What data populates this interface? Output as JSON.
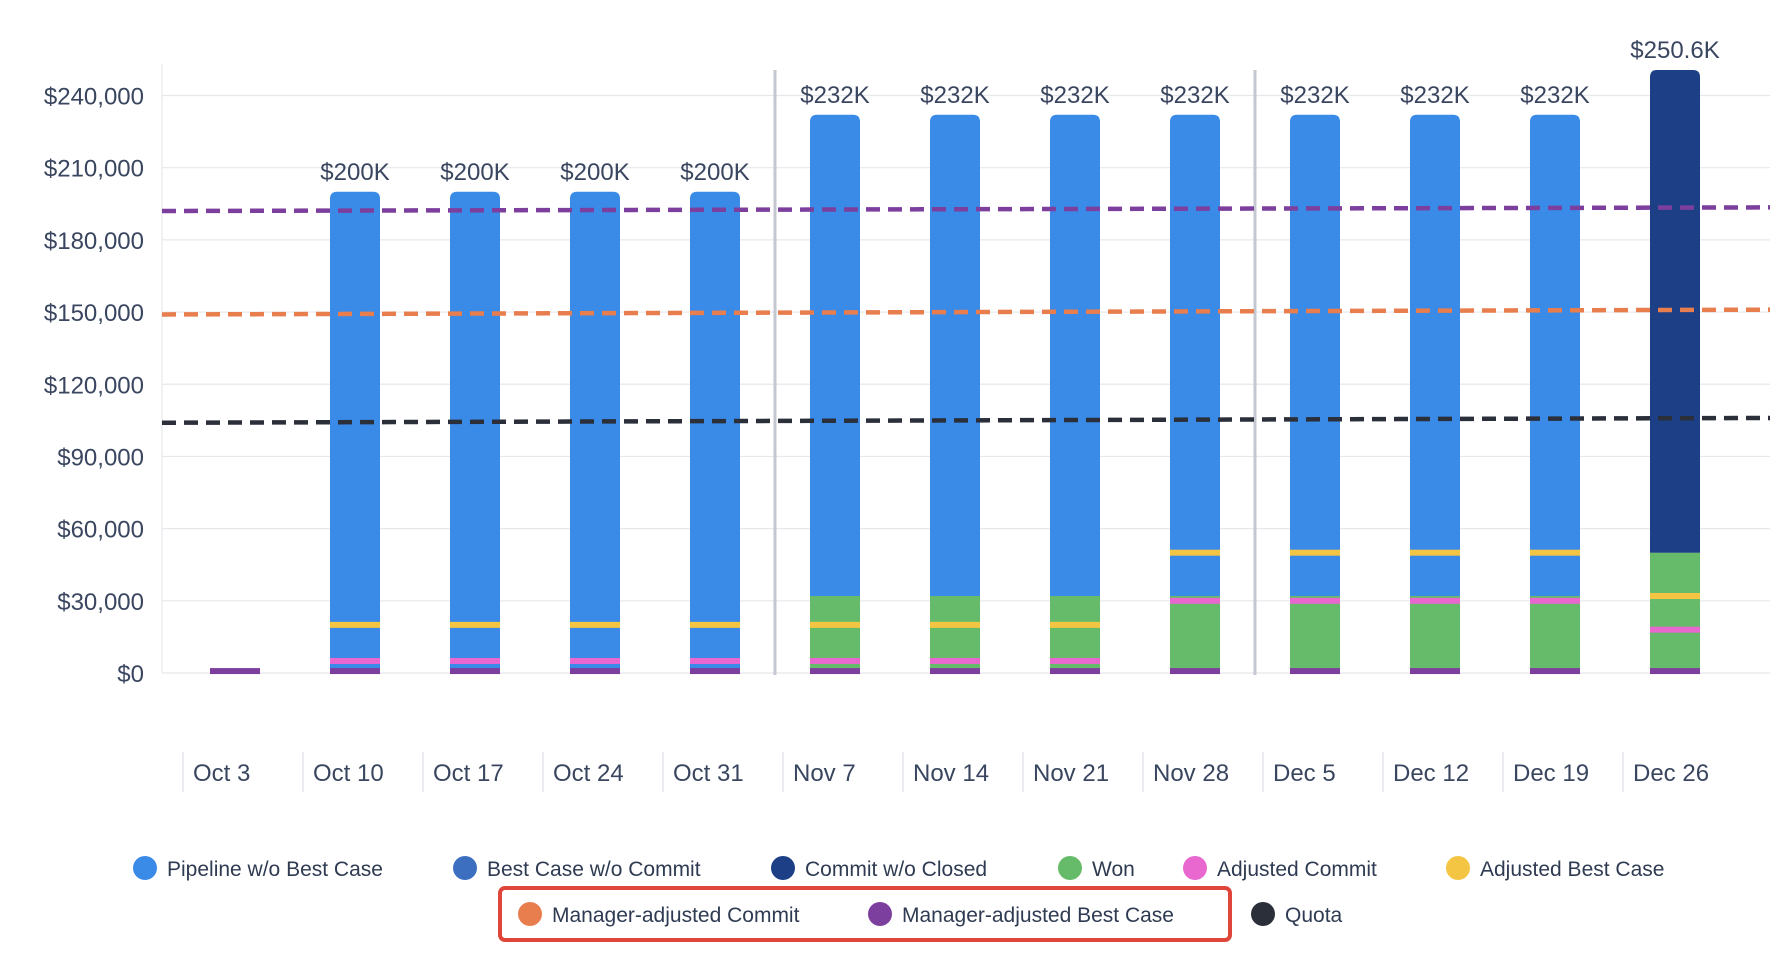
{
  "chart_data": {
    "type": "bar",
    "stacked": true,
    "title": "",
    "xlabel": "",
    "ylabel": "",
    "ylim": [
      0,
      250600
    ],
    "yticks": [
      0,
      30000,
      60000,
      90000,
      120000,
      150000,
      180000,
      210000,
      240000
    ],
    "ytick_labels": [
      "$0",
      "$30,000",
      "$60,000",
      "$90,000",
      "$120,000",
      "$150,000",
      "$180,000",
      "$210,000",
      "$240,000"
    ],
    "grid": true,
    "legend_position": "bottom",
    "categories": [
      "Oct 3",
      "Oct 10",
      "Oct 17",
      "Oct 24",
      "Oct 31",
      "Nov 7",
      "Nov 14",
      "Nov 21",
      "Nov 28",
      "Dec 5",
      "Dec 12",
      "Dec 19",
      "Dec 26"
    ],
    "totals_labels": [
      "",
      "$200K",
      "$200K",
      "$200K",
      "$200K",
      "$232K",
      "$232K",
      "$232K",
      "$232K",
      "$232K",
      "$232K",
      "$232K",
      "$250.6K"
    ],
    "period_dividers_after": [
      "Oct 31",
      "Nov 28"
    ],
    "series": [
      {
        "name": "Won",
        "color": "#66bb6a",
        "values": [
          0,
          0,
          0,
          0,
          0,
          32000,
          32000,
          32000,
          32000,
          32000,
          32000,
          32000,
          50000
        ]
      },
      {
        "name": "Commit w/o Closed",
        "color": "#1c3f85",
        "values": [
          0,
          0,
          0,
          0,
          0,
          0,
          0,
          0,
          0,
          0,
          0,
          0,
          200600
        ]
      },
      {
        "name": "Best Case w/o Commit",
        "color": "#3d6fc0",
        "values": [
          0,
          0,
          0,
          0,
          0,
          0,
          0,
          0,
          0,
          0,
          0,
          0,
          0
        ]
      },
      {
        "name": "Pipeline w/o Best Case",
        "color": "#3a8ae8",
        "values": [
          0,
          200000,
          200000,
          200000,
          200000,
          200000,
          200000,
          200000,
          200000,
          200000,
          200000,
          200000,
          0
        ]
      }
    ],
    "marker_series": [
      {
        "name": "Adjusted Commit",
        "color": "#e868d0",
        "values": [
          null,
          5000,
          5000,
          5000,
          5000,
          5000,
          5000,
          5000,
          30000,
          30000,
          30000,
          30000,
          18000
        ]
      },
      {
        "name": "Adjusted Best Case",
        "color": "#f4c542",
        "values": [
          null,
          20000,
          20000,
          20000,
          20000,
          20000,
          20000,
          20000,
          50000,
          50000,
          50000,
          50000,
          32000
        ]
      },
      {
        "name": "Manager-adjusted Best Case (bar)",
        "color": "#7d3f9e",
        "values": [
          800,
          800,
          800,
          800,
          800,
          800,
          800,
          800,
          800,
          800,
          800,
          800,
          800
        ]
      }
    ],
    "reference_lines": [
      {
        "name": "Manager-adjusted Best Case",
        "color": "#7d3f9e",
        "start": 192000,
        "end": 193500
      },
      {
        "name": "Manager-adjusted Commit",
        "color": "#e87d4e",
        "start": 149000,
        "end": 151000
      },
      {
        "name": "Quota",
        "color": "#2b2f3a",
        "start": 104000,
        "end": 106000
      }
    ],
    "legend": [
      {
        "name": "Pipeline w/o Best Case",
        "color": "#3a8ae8"
      },
      {
        "name": "Best Case w/o Commit",
        "color": "#3d6fc0"
      },
      {
        "name": "Commit w/o Closed",
        "color": "#1c3f85"
      },
      {
        "name": "Won",
        "color": "#66bb6a"
      },
      {
        "name": "Adjusted Commit",
        "color": "#e868d0"
      },
      {
        "name": "Adjusted Best Case",
        "color": "#f4c542"
      },
      {
        "name": "Manager-adjusted Commit",
        "color": "#e87d4e",
        "highlighted": true
      },
      {
        "name": "Manager-adjusted Best Case",
        "color": "#7d3f9e",
        "highlighted": true
      },
      {
        "name": "Quota",
        "color": "#2b2f3a"
      }
    ],
    "highlight_color": "#e0453a"
  }
}
